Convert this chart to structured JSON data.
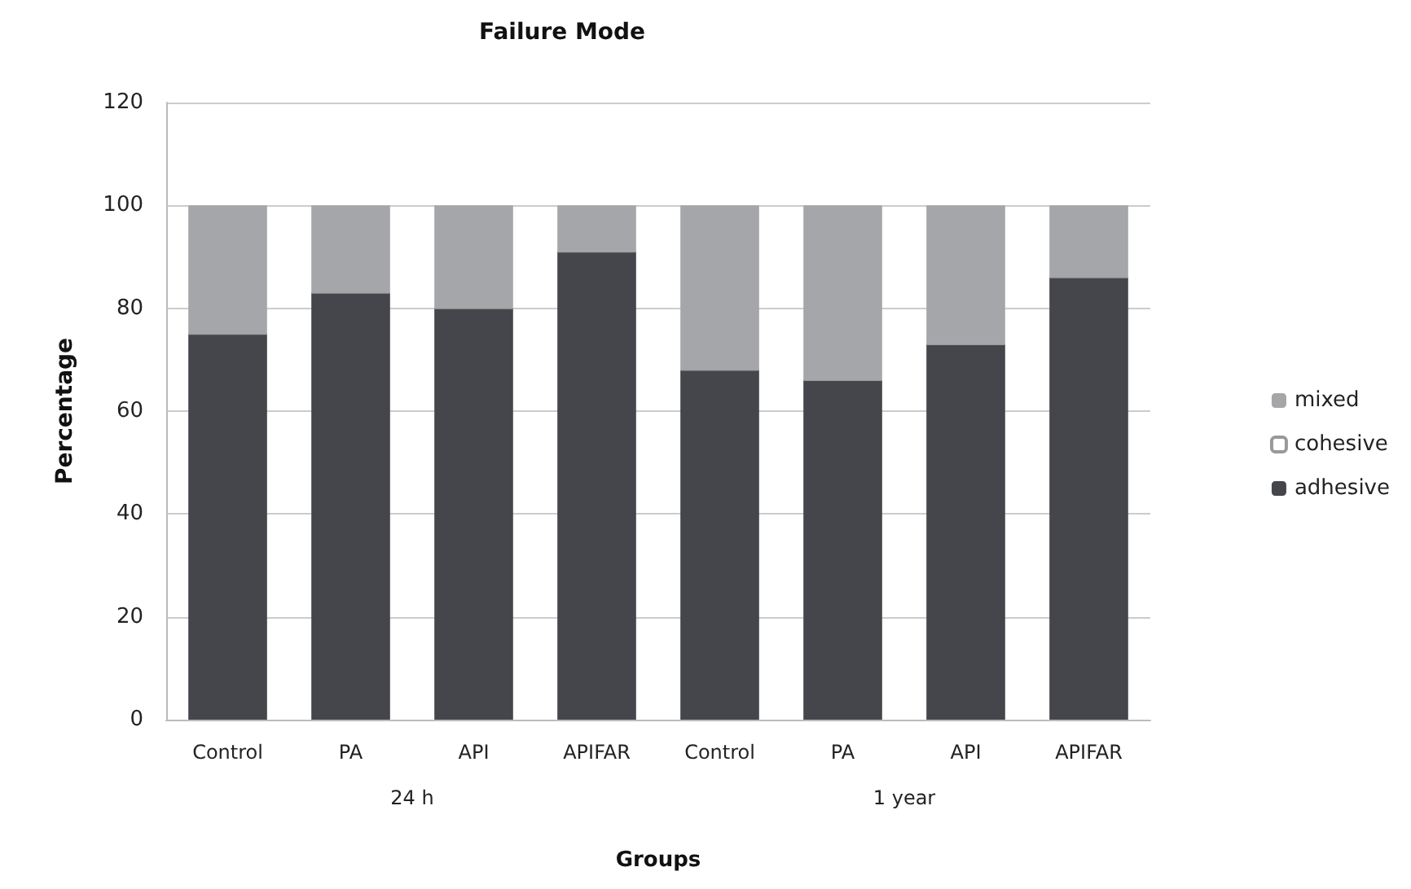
{
  "chart_data": {
    "type": "bar",
    "title": "Failure Mode",
    "xlabel": "Groups",
    "ylabel": "Percentage",
    "categories": [
      "Control",
      "PA",
      "API",
      "APIFAR",
      "Control",
      "PA",
      "API",
      "APIFAR"
    ],
    "annotations": [
      "24 h",
      "1 year"
    ],
    "stacked": true,
    "series": [
      {
        "name": "adhesive",
        "color": "#45464b",
        "values": [
          75,
          83,
          80,
          91,
          68,
          66,
          73,
          86
        ]
      },
      {
        "name": "cohesive",
        "color": "#ffffff",
        "values": [
          0,
          0,
          0,
          0,
          0,
          0,
          0,
          0
        ]
      },
      {
        "name": "mixed",
        "color": "#a5a6a9",
        "values": [
          25,
          17,
          20,
          9,
          32,
          34,
          27,
          14
        ]
      }
    ],
    "ylim": [
      0,
      120
    ],
    "yticks": [
      0,
      20,
      40,
      60,
      80,
      100,
      120
    ],
    "grid": "y",
    "legend": "right"
  }
}
